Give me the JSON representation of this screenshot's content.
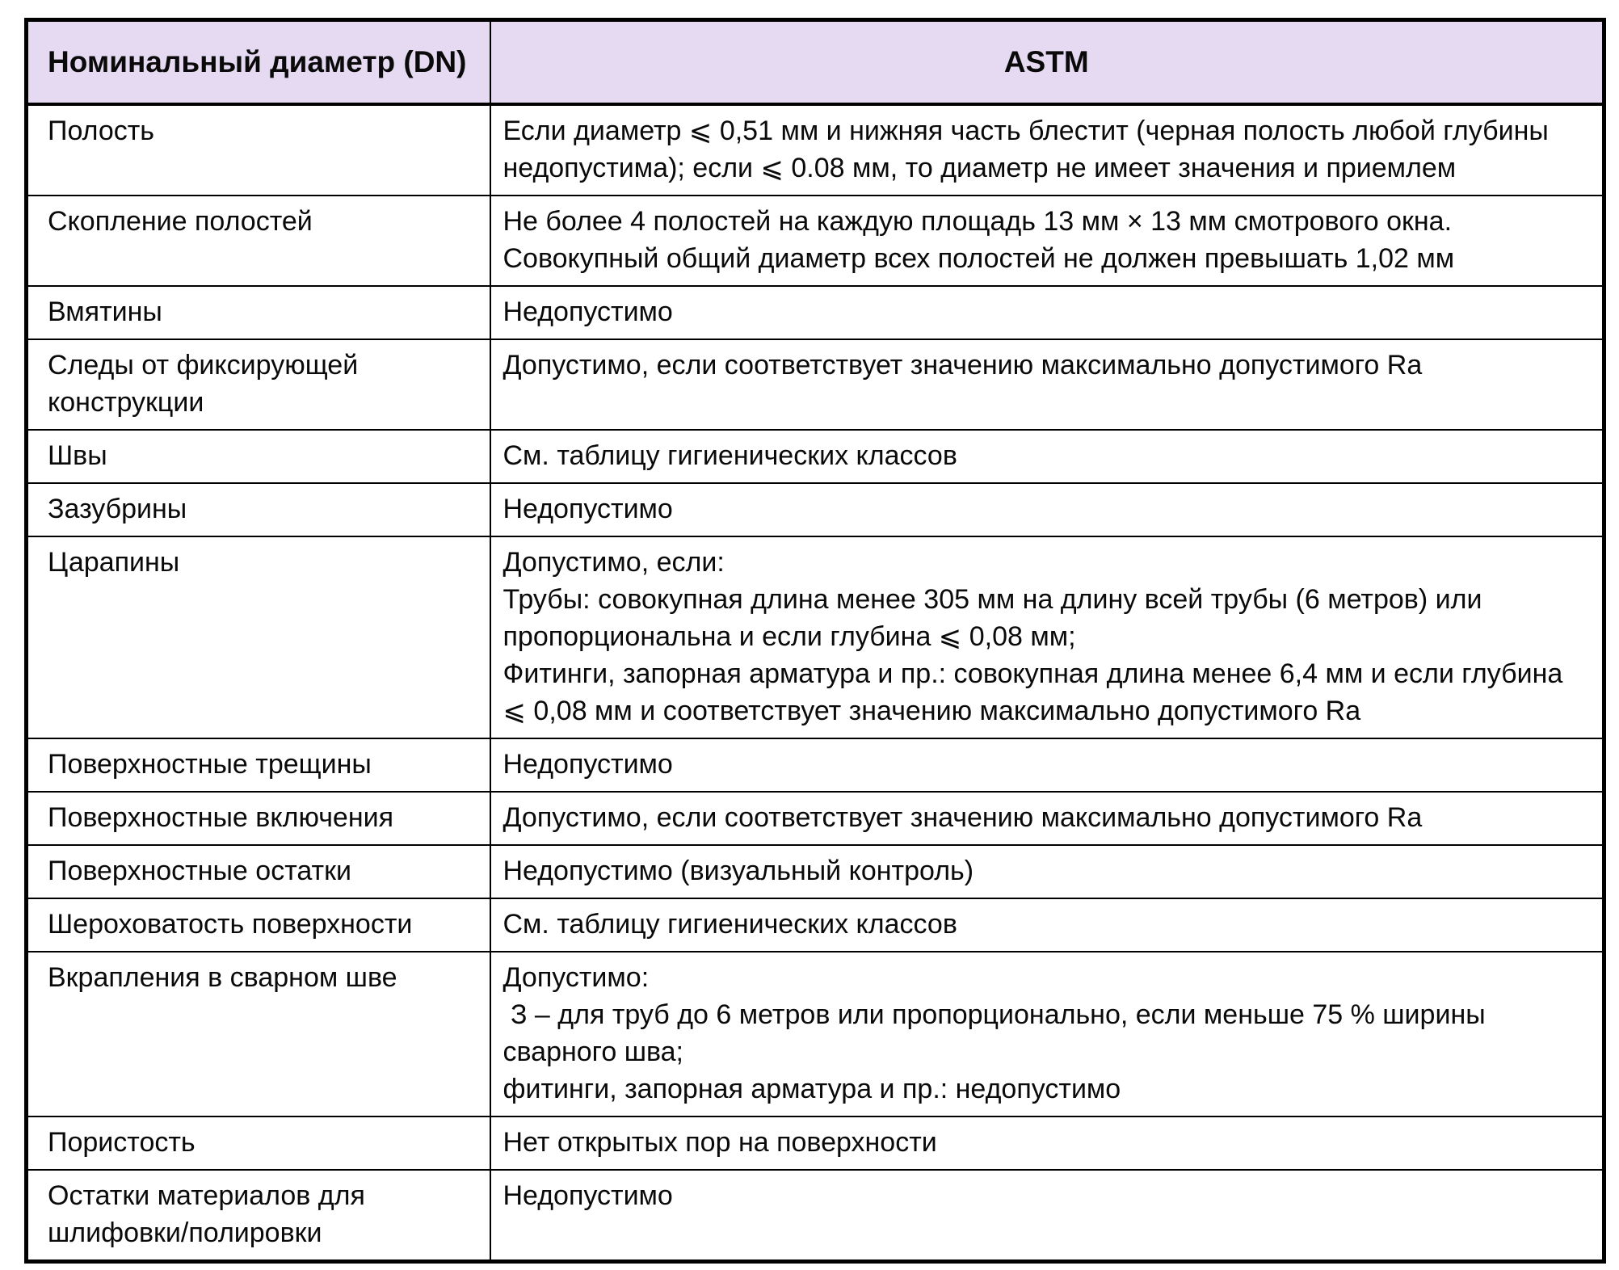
{
  "page": {
    "background": "#FFFFFF"
  },
  "colors": {
    "header_background": "#E5DAF2",
    "border": "#000000",
    "text": "#0A0A0A"
  },
  "table": {
    "headers": [
      "Номинальный диаметр (DN)",
      "ASTM"
    ],
    "rows": [
      {
        "defect": "Полость",
        "astm": "Если диаметр ⩽ 0,51 мм и нижняя часть блестит (черная полость любой глубины недопустима); если ⩽ 0.08 мм, то диаметр не имеет значения и приемлем"
      },
      {
        "defect": "Скопление полостей",
        "astm": "Не более 4 полостей на каждую площадь 13 мм × 13 мм смотрового окна.\nСовокупный общий диаметр всех полостей не должен превышать 1,02 мм"
      },
      {
        "defect": "Вмятины",
        "astm": "Недопустимо"
      },
      {
        "defect": "Следы от фиксирующей конструкции",
        "astm": "Допустимо, если соответствует значению максимально допустимого Ra"
      },
      {
        "defect": "Швы",
        "astm": "См. таблицу гигиенических классов"
      },
      {
        "defect": "Зазубрины",
        "astm": "Недопустимо"
      },
      {
        "defect": "Царапины",
        "astm": "Допустимо, если:\nТрубы: совокупная длина менее 305 мм на длину всей трубы (6 метров) или пропорциональна и если глубина ⩽ 0,08 мм;\nФитинги, запорная арматура и пр.: совокупная длина менее 6,4 мм и если глубина ⩽ 0,08 мм и соответствует значению максимально допустимого Ra"
      },
      {
        "defect": "Поверхностные трещины",
        "astm": "Недопустимо"
      },
      {
        "defect": "Поверхностные включения",
        "astm": "Допустимо, если соответствует значению максимально допустимого Ra"
      },
      {
        "defect": "Поверхностные остатки",
        "astm": "Недопустимо (визуальный контроль)"
      },
      {
        "defect": "Шероховатость поверхности",
        "astm": "См. таблицу гигиенических классов"
      },
      {
        "defect": "Вкрапления в сварном шве",
        "astm": "Допустимо:\n З – для труб до 6 метров или пропорционально, если меньше 75 % ширины сварного шва;\nфитинги, запорная арматура и пр.: недопустимо"
      },
      {
        "defect": "Пористость",
        "astm": "Нет открытых пор на поверхности"
      },
      {
        "defect": "Остатки материалов для шлифовки/полировки",
        "astm": "Недопустимо"
      }
    ]
  }
}
